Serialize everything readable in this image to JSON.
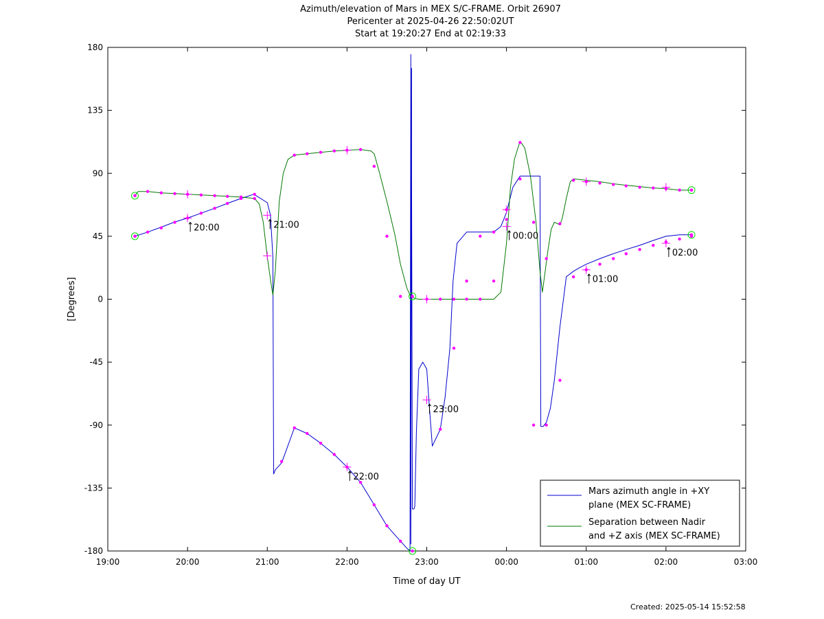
{
  "chart_data": {
    "type": "line",
    "title": [
      "Azimuth/elevation of Mars in MEX S/C-FRAME.  Orbit 26907",
      "Pericenter at 2025-04-26 22:50:02UT",
      "Start at 19:20:27 End at 02:19:33"
    ],
    "xlabel": "Time of day UT",
    "ylabel": "[Degrees]",
    "xlim": [
      19.0,
      27.0
    ],
    "ylim": [
      -180,
      180
    ],
    "xticks": [
      19,
      20,
      21,
      22,
      23,
      24,
      25,
      26,
      27
    ],
    "xtick_labels": [
      "19:00",
      "20:00",
      "21:00",
      "22:00",
      "23:00",
      "00:00",
      "01:00",
      "02:00",
      "03:00"
    ],
    "yticks": [
      180,
      135,
      90,
      45,
      0,
      -45,
      -90,
      -135,
      -180
    ],
    "ytick_labels": [
      "180",
      "135",
      "90",
      "45",
      "0",
      "-45",
      "-90",
      "-135",
      "-180"
    ],
    "legend_position": "bottom-right",
    "series": [
      {
        "name": "Mars azimuth angle in +XY plane (MEX SC-FRAME)",
        "legend_lines": [
          "Mars azimuth angle in +XY",
          "plane (MEX SC-FRAME)"
        ],
        "color": "#0000cc",
        "x": [
          19.34,
          19.5,
          19.67,
          19.83,
          20.0,
          20.17,
          20.34,
          20.5,
          20.67,
          20.83,
          20.86,
          21.0,
          21.04,
          21.07,
          21.08,
          21.1,
          21.18,
          21.34,
          21.5,
          21.67,
          21.84,
          22.0,
          22.17,
          22.34,
          22.5,
          22.67,
          22.75,
          22.79,
          22.8,
          22.8,
          22.81,
          22.81,
          22.82,
          22.84,
          22.85,
          22.87,
          22.9,
          22.95,
          23.0,
          23.03,
          23.07,
          23.17,
          23.23,
          23.29,
          23.33,
          23.38,
          23.5,
          23.67,
          23.84,
          23.93,
          24.0,
          24.08,
          24.17,
          24.3,
          24.42,
          24.43,
          24.44,
          24.46,
          24.5,
          24.55,
          24.6,
          24.67,
          24.75,
          24.84,
          24.9,
          25.0,
          25.17,
          25.34,
          25.5,
          25.67,
          25.84,
          26.0,
          26.17,
          26.32
        ],
        "y": [
          45,
          48,
          51.5,
          55,
          58,
          61.5,
          65,
          68.5,
          72,
          75,
          74,
          69,
          60,
          30,
          -125,
          -122,
          -117,
          -92,
          -96,
          -103,
          -111,
          -120,
          -131,
          -147,
          -162,
          -173,
          -178,
          -180,
          175,
          -175,
          165,
          90,
          -150,
          -150,
          -148,
          -95,
          -50,
          -45,
          -50,
          -75,
          -105,
          -93,
          -70,
          -35,
          13,
          40,
          48,
          48,
          48,
          52,
          62,
          80,
          88,
          88,
          88,
          -91,
          -91,
          -91,
          -88,
          -78,
          -58,
          -20,
          16,
          20,
          22,
          25,
          29,
          32.5,
          35.5,
          38.5,
          42,
          45,
          46,
          46
        ],
        "markers_x": [
          19.34,
          19.5,
          19.67,
          19.84,
          20.0,
          20.17,
          20.34,
          20.5,
          20.67,
          20.84,
          21.18,
          21.34,
          21.5,
          21.67,
          21.84,
          22.0,
          22.17,
          22.34,
          22.5,
          22.67,
          23.17,
          23.34,
          23.5,
          23.67,
          23.84,
          24.0,
          24.17,
          24.34,
          24.5,
          24.67,
          24.84,
          25.0,
          25.17,
          25.34,
          25.5,
          25.67,
          25.84,
          26.0,
          26.17,
          26.32
        ],
        "markers_y": [
          45,
          48,
          51,
          55,
          58,
          61.5,
          65,
          68.5,
          72,
          75,
          -116,
          -92,
          -96,
          -103,
          -111,
          -120,
          -131,
          -147,
          -162,
          -173,
          -93,
          -35,
          13,
          45,
          48,
          57,
          86,
          -90,
          -90,
          -58,
          16,
          21,
          25,
          29,
          32.5,
          35.5,
          38.5,
          41,
          43,
          45
        ]
      },
      {
        "name": "Separation between Nadir and +Z axis (MEX SC-FRAME)",
        "legend_lines": [
          "Separation between Nadir",
          "and +Z axis (MEX SC-FRAME)"
        ],
        "color": "#007700",
        "x": [
          19.34,
          19.38,
          19.5,
          19.67,
          19.84,
          20.0,
          20.17,
          20.34,
          20.5,
          20.67,
          20.84,
          20.9,
          20.95,
          21.0,
          21.05,
          21.07,
          21.1,
          21.15,
          21.2,
          21.26,
          21.34,
          21.5,
          21.67,
          21.84,
          22.0,
          22.17,
          22.3,
          22.34,
          22.4,
          22.5,
          22.6,
          22.67,
          22.75,
          22.79,
          22.82,
          22.85,
          22.9,
          23.0,
          23.17,
          23.34,
          23.5,
          23.67,
          23.84,
          23.93,
          24.0,
          24.05,
          24.1,
          24.17,
          24.23,
          24.3,
          24.37,
          24.42,
          24.45,
          24.48,
          24.52,
          24.56,
          24.6,
          24.64,
          24.67,
          24.7,
          24.75,
          24.8,
          24.84,
          25.0,
          25.17,
          25.34,
          25.5,
          25.67,
          25.84,
          26.0,
          26.17,
          26.32
        ],
        "y": [
          74,
          77,
          77,
          76,
          75.5,
          75,
          74.5,
          74,
          73.5,
          73,
          72,
          68,
          55,
          30,
          10,
          3,
          20,
          70,
          90,
          100,
          103,
          104,
          105,
          106,
          106.5,
          107,
          106,
          104,
          92,
          70,
          46,
          25,
          8,
          3,
          1.5,
          0.5,
          0,
          0,
          0,
          0,
          0,
          0,
          0,
          5,
          40,
          80,
          100,
          113,
          108,
          88,
          55,
          20,
          5,
          18,
          35,
          50,
          55,
          54,
          53,
          58,
          72,
          84,
          86,
          85,
          84,
          82.5,
          81.5,
          80.5,
          79.5,
          79,
          78,
          78
        ],
        "markers_x": [
          19.34,
          19.5,
          19.67,
          19.84,
          20.0,
          20.17,
          20.34,
          20.5,
          20.67,
          20.84,
          21.34,
          21.5,
          21.67,
          21.84,
          22.0,
          22.17,
          22.34,
          22.5,
          22.67,
          23.0,
          23.17,
          23.34,
          23.5,
          23.67,
          23.84,
          24.0,
          24.17,
          24.34,
          24.5,
          24.67,
          24.84,
          25.0,
          25.17,
          25.34,
          25.5,
          25.67,
          25.84,
          26.0,
          26.17,
          26.32
        ],
        "markers_y": [
          74,
          77,
          76,
          75.5,
          75,
          74.5,
          74,
          73.5,
          73,
          72,
          103,
          104,
          105,
          106,
          106.5,
          107,
          95,
          45,
          2,
          0,
          0,
          0,
          0,
          0,
          13,
          64,
          112,
          55,
          29,
          54,
          85,
          84,
          83,
          82,
          81,
          80,
          79.5,
          79,
          78,
          78
        ]
      }
    ],
    "hour_marks": [
      {
        "label": "20:00",
        "x": 20.0,
        "azimuth": 58,
        "separation": 75
      },
      {
        "label": "21:00",
        "x": 21.0,
        "azimuth": 60,
        "separation": 31
      },
      {
        "label": "22:00",
        "x": 22.0,
        "azimuth": -120,
        "separation": 106.5
      },
      {
        "label": "23:00",
        "x": 23.0,
        "azimuth": -72,
        "separation": 0
      },
      {
        "label": "00:00",
        "x": 24.0,
        "azimuth": 52,
        "separation": 64
      },
      {
        "label": "01:00",
        "x": 25.0,
        "azimuth": 21,
        "separation": 84
      },
      {
        "label": "02:00",
        "x": 26.0,
        "azimuth": 40,
        "separation": 80
      }
    ],
    "circle_marks": [
      {
        "x": 19.34,
        "y": 74
      },
      {
        "x": 19.34,
        "y": 45
      },
      {
        "x": 22.82,
        "y": 2
      },
      {
        "x": 22.82,
        "y": -180
      },
      {
        "x": 26.32,
        "y": 78
      },
      {
        "x": 26.32,
        "y": 46
      }
    ]
  },
  "footer": {
    "created": "Created: 2025-05-14 15:52:58"
  },
  "colors": {
    "marker": "#ff00ff",
    "circle": "#00dd00"
  }
}
